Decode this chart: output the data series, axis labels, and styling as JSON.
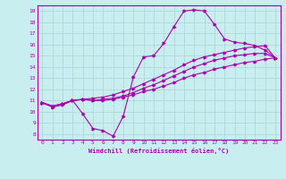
{
  "xlabel": "Windchill (Refroidissement éolien,°C)",
  "bg_color": "#c8eef0",
  "grid_color": "#b0d8dc",
  "line_color": "#aa00aa",
  "spine_color": "#aa00aa",
  "xlim": [
    -0.5,
    23.5
  ],
  "ylim": [
    7.5,
    19.5
  ],
  "xticks": [
    0,
    1,
    2,
    3,
    4,
    5,
    6,
    7,
    8,
    9,
    10,
    11,
    12,
    13,
    14,
    15,
    16,
    17,
    18,
    19,
    20,
    21,
    22,
    23
  ],
  "yticks": [
    8,
    9,
    10,
    11,
    12,
    13,
    14,
    15,
    16,
    17,
    18,
    19
  ],
  "line1_x": [
    0,
    1,
    2,
    3,
    4,
    5,
    6,
    7,
    8,
    9,
    10,
    11,
    12,
    13,
    14,
    15,
    16,
    17,
    18,
    19,
    20,
    21,
    22,
    23
  ],
  "line1_y": [
    10.8,
    10.4,
    10.6,
    11.0,
    9.8,
    8.5,
    8.3,
    7.8,
    9.6,
    13.1,
    14.9,
    15.0,
    16.1,
    17.6,
    19.0,
    19.1,
    19.0,
    17.8,
    16.5,
    16.2,
    16.1,
    15.9,
    15.5,
    14.8
  ],
  "line2_x": [
    0,
    1,
    2,
    3,
    4,
    5,
    6,
    7,
    8,
    9,
    10,
    11,
    12,
    13,
    14,
    15,
    16,
    17,
    18,
    19,
    20,
    21,
    22,
    23
  ],
  "line2_y": [
    10.8,
    10.5,
    10.7,
    11.0,
    11.1,
    11.0,
    11.0,
    11.1,
    11.3,
    11.5,
    11.8,
    12.0,
    12.3,
    12.6,
    13.0,
    13.3,
    13.5,
    13.8,
    14.0,
    14.2,
    14.4,
    14.5,
    14.7,
    14.8
  ],
  "line3_x": [
    0,
    1,
    2,
    3,
    4,
    5,
    6,
    7,
    8,
    9,
    10,
    11,
    12,
    13,
    14,
    15,
    16,
    17,
    18,
    19,
    20,
    21,
    22,
    23
  ],
  "line3_y": [
    10.8,
    10.5,
    10.7,
    11.0,
    11.1,
    11.2,
    11.3,
    11.5,
    11.8,
    12.1,
    12.5,
    12.9,
    13.3,
    13.7,
    14.2,
    14.6,
    14.9,
    15.1,
    15.3,
    15.5,
    15.7,
    15.8,
    15.9,
    14.8
  ],
  "line4_x": [
    0,
    1,
    2,
    3,
    4,
    5,
    6,
    7,
    8,
    9,
    10,
    11,
    12,
    13,
    14,
    15,
    16,
    17,
    18,
    19,
    20,
    21,
    22,
    23
  ],
  "line4_y": [
    10.8,
    10.5,
    10.7,
    11.0,
    11.1,
    11.0,
    11.1,
    11.2,
    11.4,
    11.7,
    12.1,
    12.4,
    12.8,
    13.2,
    13.6,
    14.0,
    14.3,
    14.6,
    14.8,
    15.0,
    15.1,
    15.2,
    15.2,
    14.8
  ]
}
